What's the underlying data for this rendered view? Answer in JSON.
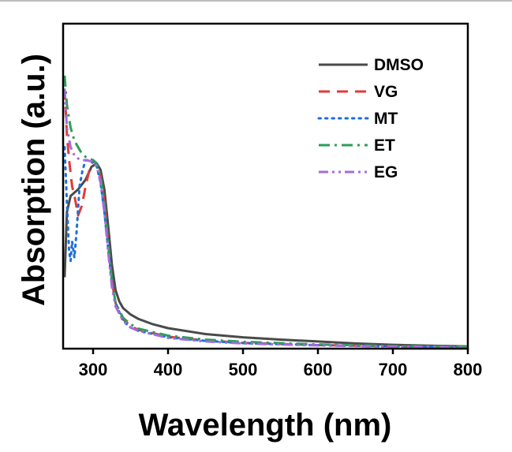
{
  "chart_data": {
    "type": "line",
    "title": "",
    "xlabel": "Wavelength (nm)",
    "ylabel": "Absorption (a.u.)",
    "xlim": [
      260,
      800
    ],
    "ylim": [
      0,
      1.0
    ],
    "x_ticks": [
      300,
      400,
      500,
      600,
      700,
      800
    ],
    "y_ticks_labeled": false,
    "grid": false,
    "legend_position": "top-right",
    "series": [
      {
        "name": "DMSO",
        "color": "#4a4a4a",
        "dash": "solid",
        "x": [
          262,
          265,
          270,
          280,
          290,
          298,
          305,
          310,
          315,
          320,
          325,
          330,
          335,
          340,
          350,
          360,
          380,
          400,
          450,
          500,
          550,
          600,
          650,
          700,
          750,
          800
        ],
        "y": [
          0.22,
          0.42,
          0.47,
          0.49,
          0.52,
          0.56,
          0.57,
          0.55,
          0.49,
          0.38,
          0.26,
          0.18,
          0.145,
          0.125,
          0.105,
          0.092,
          0.075,
          0.063,
          0.045,
          0.035,
          0.028,
          0.022,
          0.016,
          0.012,
          0.009,
          0.007
        ]
      },
      {
        "name": "VG",
        "color": "#e53935",
        "dash": "dashed",
        "x": [
          262,
          265,
          268,
          272,
          276,
          280,
          285,
          290,
          295,
          300,
          305,
          310,
          315,
          320,
          325,
          330,
          340,
          350,
          360,
          400,
          450,
          500,
          600,
          700,
          800
        ],
        "y": [
          0.8,
          0.66,
          0.58,
          0.5,
          0.46,
          0.41,
          0.44,
          0.5,
          0.55,
          0.58,
          0.57,
          0.53,
          0.45,
          0.33,
          0.21,
          0.14,
          0.09,
          0.07,
          0.058,
          0.037,
          0.025,
          0.018,
          0.011,
          0.007,
          0.005
        ]
      },
      {
        "name": "MT",
        "color": "#1e6fd9",
        "dash": "dotted",
        "x": [
          262,
          265,
          268,
          270,
          272,
          275,
          278,
          282,
          286,
          290,
          295,
          300,
          305,
          310,
          315,
          320,
          325,
          330,
          340,
          350,
          360,
          400,
          450,
          500,
          600,
          700,
          800
        ],
        "y": [
          0.62,
          0.45,
          0.3,
          0.27,
          0.33,
          0.28,
          0.36,
          0.5,
          0.55,
          0.58,
          0.58,
          0.575,
          0.56,
          0.51,
          0.42,
          0.31,
          0.2,
          0.14,
          0.085,
          0.065,
          0.055,
          0.035,
          0.024,
          0.017,
          0.011,
          0.007,
          0.005
        ]
      },
      {
        "name": "ET",
        "color": "#2e9e57",
        "dash": "dashdot",
        "x": [
          262,
          265,
          270,
          275,
          280,
          285,
          290,
          295,
          300,
          305,
          310,
          315,
          320,
          325,
          330,
          340,
          350,
          360,
          400,
          450,
          500,
          600,
          700,
          800
        ],
        "y": [
          0.84,
          0.75,
          0.68,
          0.64,
          0.62,
          0.6,
          0.59,
          0.585,
          0.58,
          0.57,
          0.53,
          0.45,
          0.33,
          0.21,
          0.14,
          0.095,
          0.075,
          0.062,
          0.04,
          0.028,
          0.021,
          0.013,
          0.008,
          0.006
        ]
      },
      {
        "name": "EG",
        "color": "#a66be0",
        "dash": "dashdotdot",
        "x": [
          262,
          265,
          270,
          275,
          280,
          285,
          290,
          295,
          300,
          305,
          310,
          315,
          320,
          325,
          330,
          340,
          350,
          360,
          400,
          450,
          500,
          600,
          700,
          800
        ],
        "y": [
          0.8,
          0.68,
          0.62,
          0.595,
          0.585,
          0.58,
          0.58,
          0.578,
          0.575,
          0.56,
          0.51,
          0.42,
          0.3,
          0.19,
          0.13,
          0.085,
          0.065,
          0.055,
          0.033,
          0.022,
          0.016,
          0.01,
          0.006,
          0.004
        ]
      }
    ]
  }
}
